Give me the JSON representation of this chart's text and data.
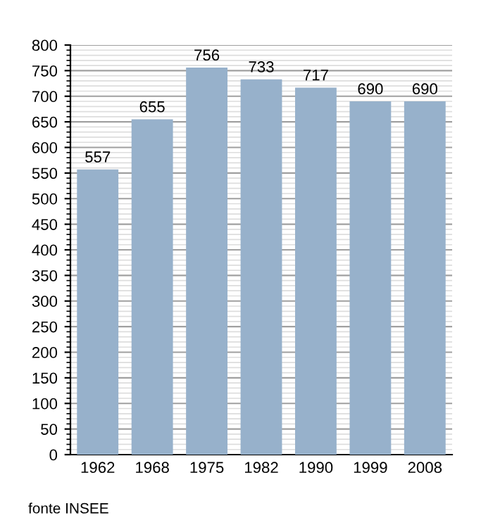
{
  "chart_data": {
    "type": "bar",
    "categories": [
      "1962",
      "1968",
      "1975",
      "1982",
      "1990",
      "1999",
      "2008"
    ],
    "values": [
      557,
      655,
      756,
      733,
      717,
      690,
      690
    ],
    "color": "#97b1cb",
    "data_labels": true,
    "ylim": [
      0,
      800
    ],
    "yticks": [
      0,
      50,
      100,
      150,
      200,
      250,
      300,
      350,
      400,
      450,
      500,
      550,
      600,
      650,
      700,
      750,
      800
    ],
    "grid": "y",
    "annotations": [
      "fonte INSEE"
    ]
  }
}
